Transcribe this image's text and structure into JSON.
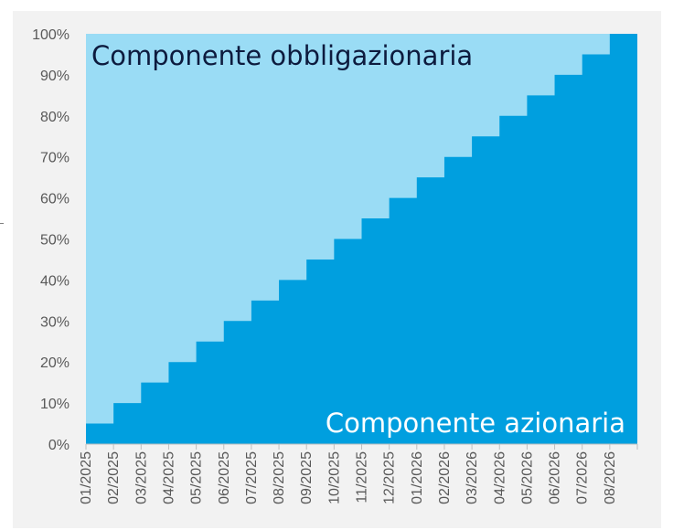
{
  "chart_data": {
    "type": "area",
    "step": true,
    "categories": [
      "01/2025",
      "02/2025",
      "03/2025",
      "04/2025",
      "05/2025",
      "06/2025",
      "07/2025",
      "08/2025",
      "09/2025",
      "10/2025",
      "11/2025",
      "12/2025",
      "01/2026",
      "02/2026",
      "03/2026",
      "04/2026",
      "05/2026",
      "06/2026",
      "07/2026",
      "08/2026"
    ],
    "series": [
      {
        "name": "Componente azionaria",
        "values": [
          5,
          10,
          15,
          20,
          25,
          30,
          35,
          40,
          45,
          50,
          55,
          60,
          65,
          70,
          75,
          80,
          85,
          90,
          95,
          100
        ],
        "color": "#009fdf"
      },
      {
        "name": "Componente obbligazionaria",
        "values": [
          95,
          90,
          85,
          80,
          75,
          70,
          65,
          60,
          55,
          50,
          45,
          40,
          35,
          30,
          25,
          20,
          15,
          10,
          5,
          0
        ],
        "color": "#9adcf5"
      }
    ],
    "ylim": [
      0,
      100
    ],
    "y_ticks": [
      "0%",
      "10%",
      "20%",
      "30%",
      "40%",
      "50%",
      "60%",
      "70%",
      "80%",
      "90%",
      "100%"
    ],
    "stacked": true,
    "grid": false,
    "legend": "none",
    "bond_label_color": "#0d1b3e",
    "equity_label_color": "#ffffff",
    "background": "#f2f2f2"
  }
}
